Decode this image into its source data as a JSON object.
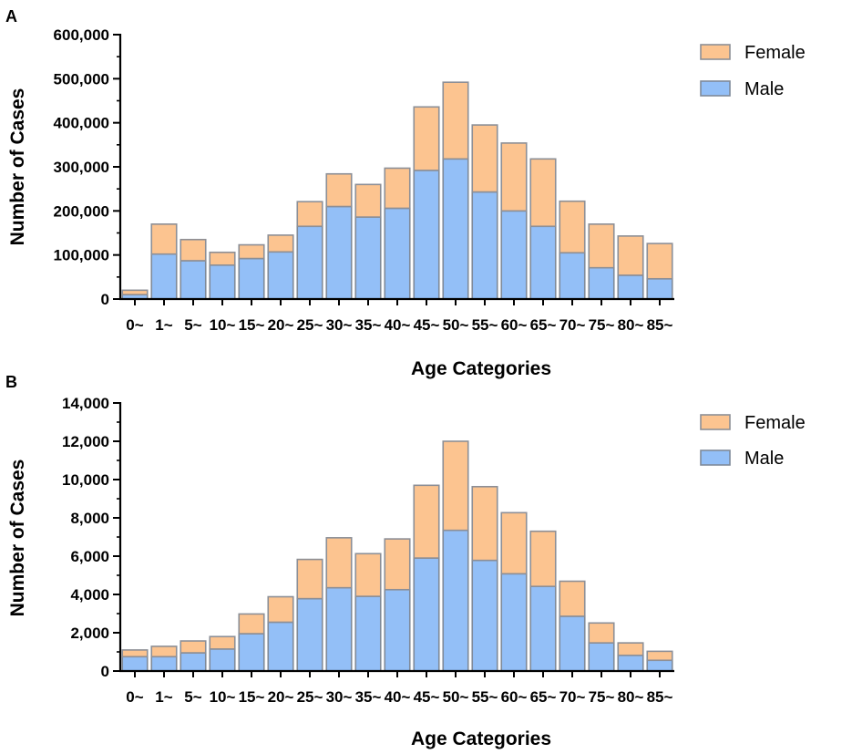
{
  "chart_data": [
    {
      "panel": "A",
      "type": "bar",
      "stacked": true,
      "categories": [
        "0~",
        "1~",
        "5~",
        "10~",
        "15~",
        "20~",
        "25~",
        "30~",
        "35~",
        "40~",
        "45~",
        "50~",
        "55~",
        "60~",
        "65~",
        "70~",
        "75~",
        "80~",
        "85~"
      ],
      "series": [
        {
          "name": "Male",
          "color": "#93bff7",
          "values": [
            10000,
            102000,
            87000,
            77000,
            92000,
            107000,
            165000,
            210000,
            186000,
            206000,
            292000,
            318000,
            243000,
            200000,
            165000,
            105000,
            71000,
            54000,
            46000
          ]
        },
        {
          "name": "Female",
          "color": "#fcc490",
          "values": [
            10000,
            68000,
            48000,
            29000,
            31000,
            38000,
            56000,
            74000,
            74000,
            91000,
            144000,
            174000,
            152000,
            154000,
            153000,
            117000,
            99000,
            89000,
            80000
          ]
        }
      ],
      "xlabel": "Age Categories",
      "ylabel": "Number of Cases",
      "ylim": [
        0,
        600000
      ],
      "yticks": [
        0,
        100000,
        200000,
        300000,
        400000,
        500000,
        600000
      ],
      "ytick_labels": [
        "0",
        "100,000",
        "200,000",
        "300,000",
        "400,000",
        "500,000",
        "600,000"
      ],
      "legend": [
        "Female",
        "Male"
      ],
      "legend_position": "top-right",
      "grid": false
    },
    {
      "panel": "B",
      "type": "bar",
      "stacked": true,
      "categories": [
        "0~",
        "1~",
        "5~",
        "10~",
        "15~",
        "20~",
        "25~",
        "30~",
        "35~",
        "40~",
        "45~",
        "50~",
        "55~",
        "60~",
        "65~",
        "70~",
        "75~",
        "80~",
        "85~"
      ],
      "series": [
        {
          "name": "Male",
          "color": "#93bff7",
          "values": [
            750,
            750,
            950,
            1150,
            1950,
            2550,
            3780,
            4350,
            3900,
            4250,
            5900,
            7350,
            5780,
            5080,
            4420,
            2860,
            1470,
            820,
            560
          ]
        },
        {
          "name": "Female",
          "color": "#fcc490",
          "values": [
            350,
            540,
            620,
            650,
            1030,
            1330,
            2050,
            2610,
            2230,
            2650,
            3800,
            4650,
            3850,
            3190,
            2880,
            1830,
            1040,
            650,
            470
          ]
        }
      ],
      "xlabel": "Age Categories",
      "ylabel": "Number of Cases",
      "ylim": [
        0,
        14000
      ],
      "yticks": [
        0,
        2000,
        4000,
        6000,
        8000,
        10000,
        12000,
        14000
      ],
      "ytick_labels": [
        "0",
        "2,000",
        "4,000",
        "6,000",
        "8,000",
        "10,000",
        "12,000",
        "14,000"
      ],
      "legend": [
        "Female",
        "Male"
      ],
      "legend_position": "top-right",
      "grid": false
    }
  ]
}
